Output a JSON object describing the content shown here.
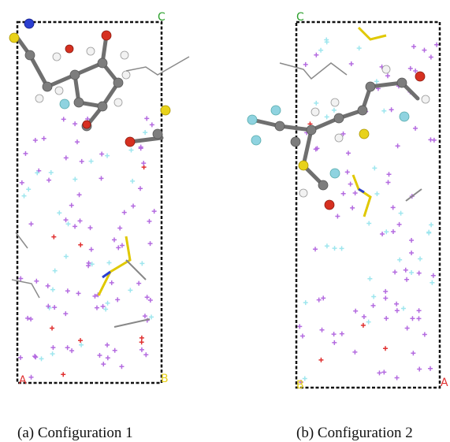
{
  "panels": [
    {
      "corner_labels": {
        "c": "C",
        "a": "A",
        "b": "B"
      },
      "caption": "(a) Configuration 1"
    },
    {
      "corner_labels": {
        "c": "C",
        "a": "A",
        "b": "B"
      },
      "caption": "(b) Configuration 2"
    }
  ]
}
